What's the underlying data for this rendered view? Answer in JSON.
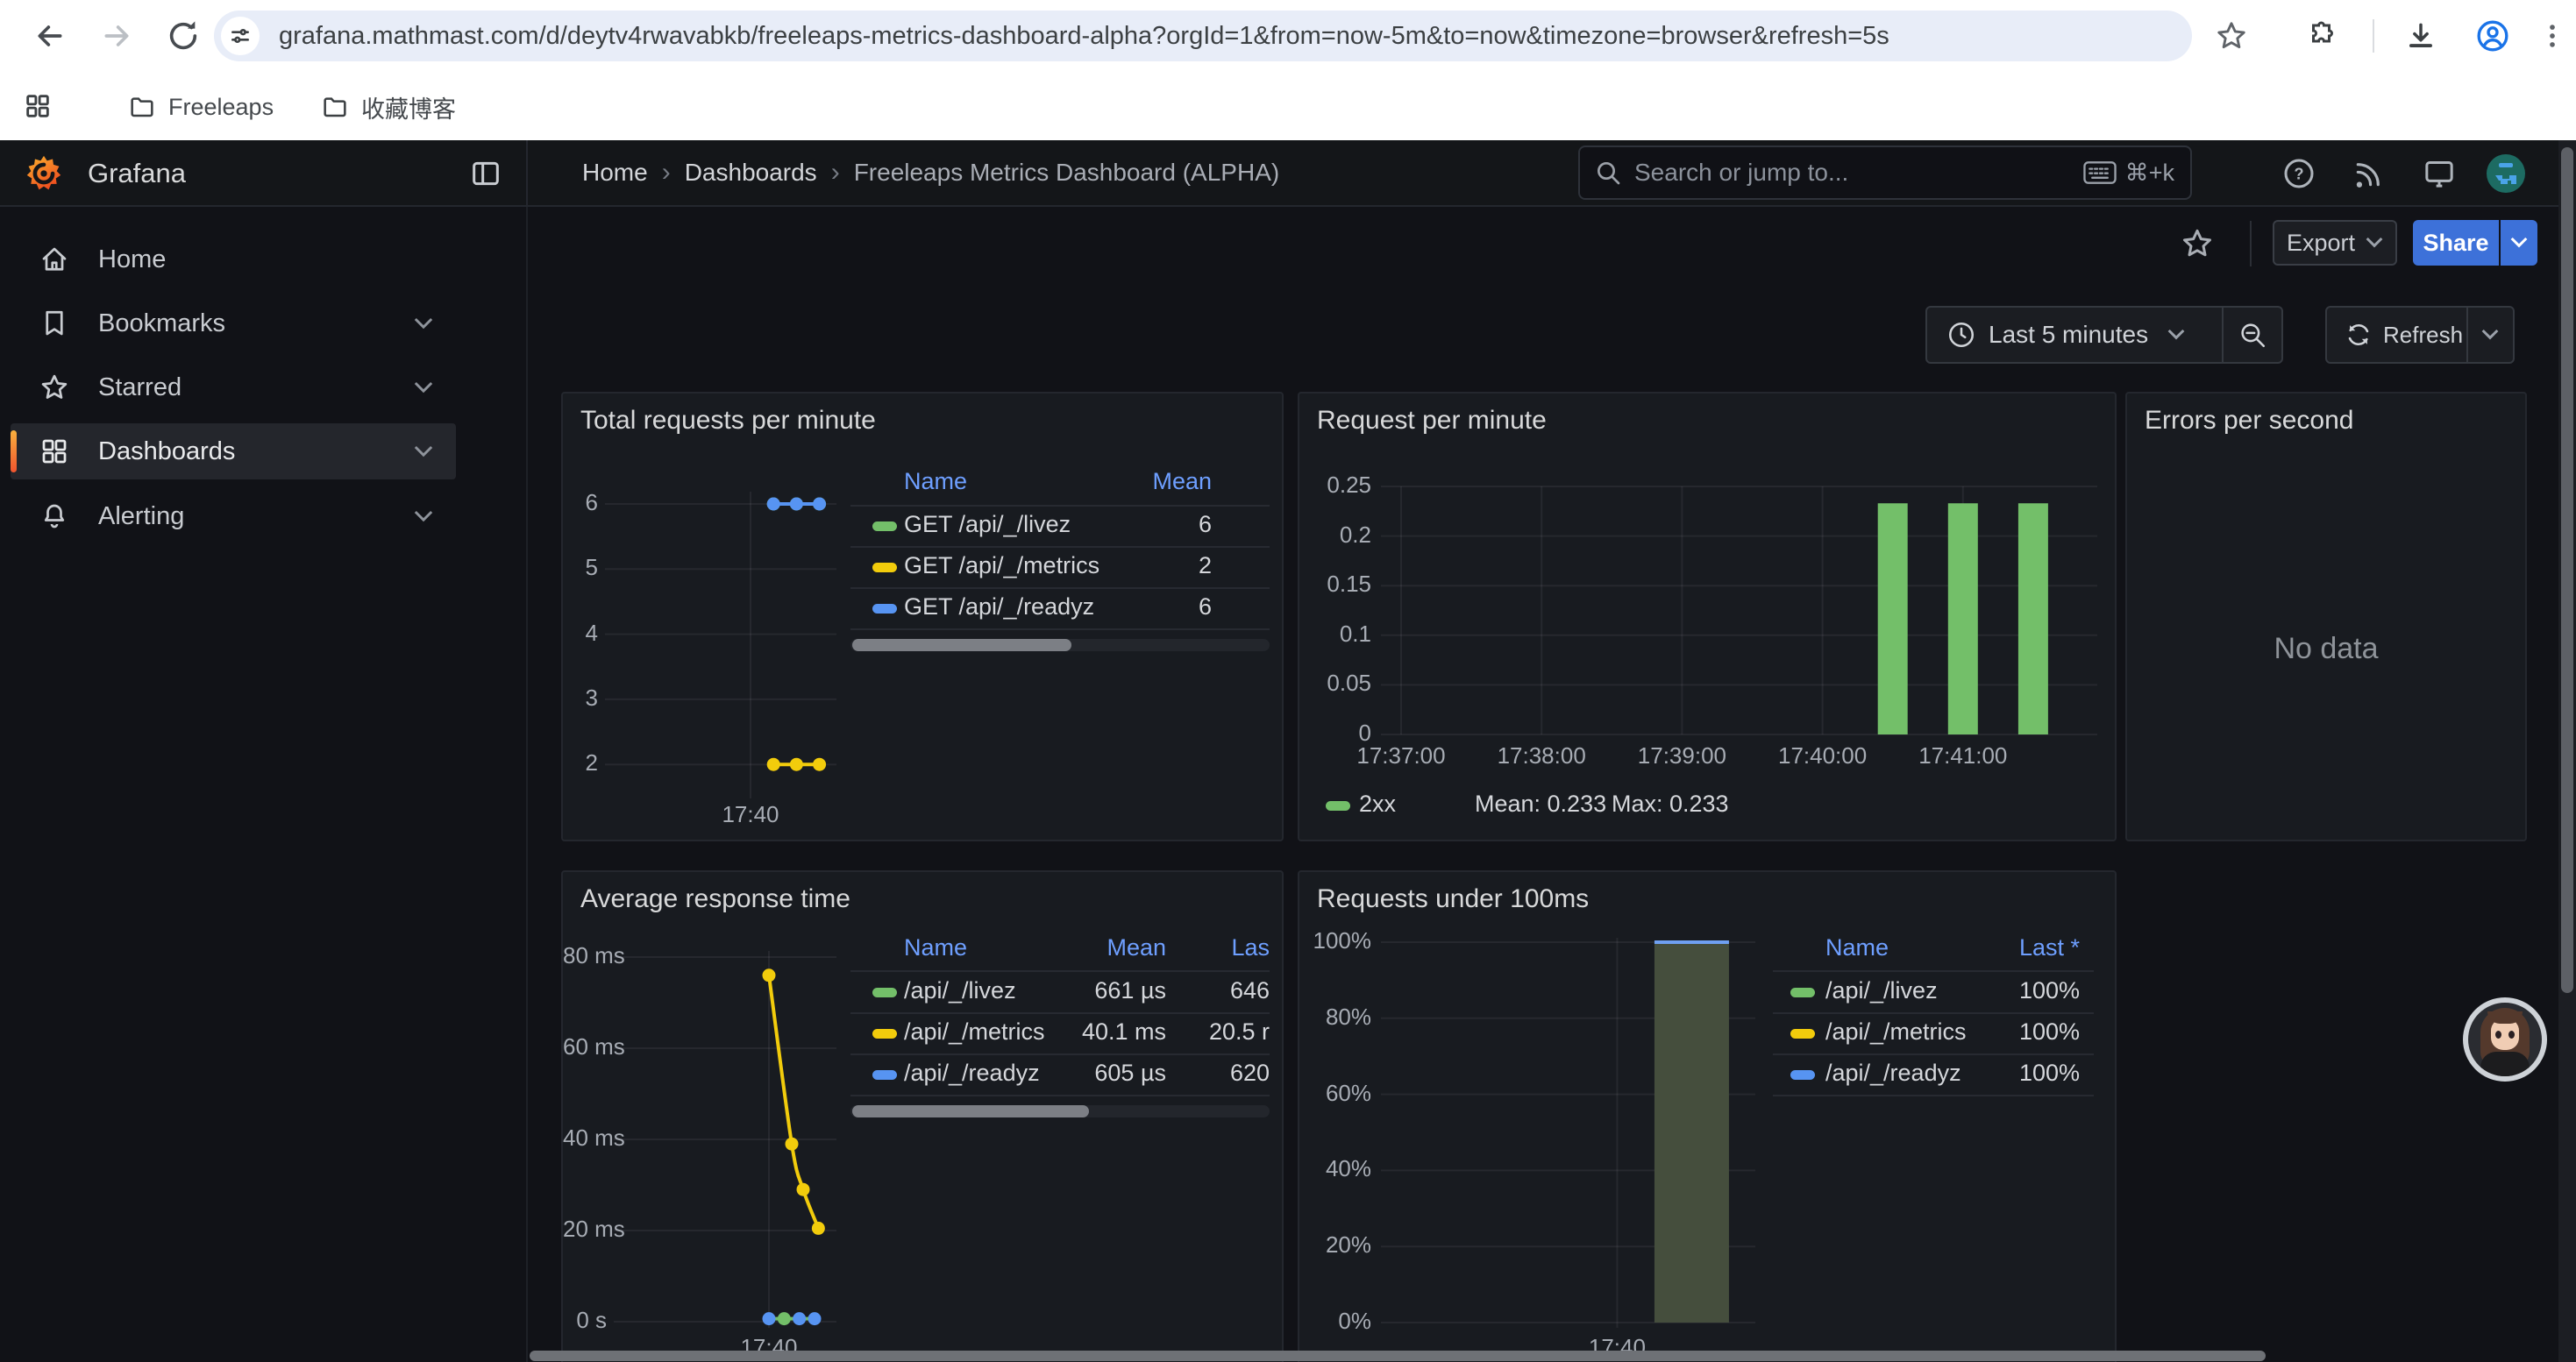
{
  "browser": {
    "url": "grafana.mathmast.com/d/deytv4rwavabkb/freeleaps-metrics-dashboard-alpha?orgId=1&from=now-5m&to=now&timezone=browser&refresh=5s",
    "bookmarks": [
      "Freeleaps",
      "收藏博客"
    ]
  },
  "grafana": {
    "brand": "Grafana",
    "breadcrumbs": [
      "Home",
      "Dashboards",
      "Freeleaps Metrics Dashboard (ALPHA)"
    ],
    "search": {
      "placeholder": "Search or jump to...",
      "shortcut": "⌘+k"
    },
    "toolbar": {
      "export_label": "Export",
      "share_label": "Share"
    },
    "timebar": {
      "range_label": "Last 5 minutes",
      "refresh_label": "Refresh"
    },
    "sidebar": [
      {
        "label": "Home",
        "icon": "home",
        "active": false,
        "chevron": false
      },
      {
        "label": "Bookmarks",
        "icon": "bookmark",
        "active": false,
        "chevron": true
      },
      {
        "label": "Starred",
        "icon": "star",
        "active": false,
        "chevron": true
      },
      {
        "label": "Dashboards",
        "icon": "grid",
        "active": true,
        "chevron": true
      },
      {
        "label": "Alerting",
        "icon": "bell",
        "active": false,
        "chevron": true
      }
    ]
  },
  "colors": {
    "green": "#73BF69",
    "yellow": "#F2CC0C",
    "blue": "#5794F2",
    "link_blue": "#6E9FFF",
    "share_blue": "#3D71D9",
    "area_olive": "#454E3D",
    "area_top_blue": "#6FA0F2"
  },
  "chart_data": [
    {
      "panel": "Total requests per minute",
      "type": "line",
      "y_ticks": [
        6,
        5,
        4,
        3,
        2
      ],
      "x_tick": {
        "label": "17:40",
        "s": 200
      },
      "points_seconds": [
        230,
        260,
        290
      ],
      "legend_columns": [
        "Name",
        "Mean"
      ],
      "series": [
        {
          "name": "GET /api/_/livez",
          "color": "green",
          "mean": 6
        },
        {
          "name": "GET /api/_/metrics",
          "color": "yellow",
          "mean": 2
        },
        {
          "name": "GET /api/_/readyz",
          "color": "blue",
          "mean": 6
        }
      ]
    },
    {
      "panel": "Request per minute",
      "type": "bar",
      "y_ticks": [
        "0.25",
        "0.2",
        "0.15",
        "0.1",
        "0.05",
        "0"
      ],
      "y_max": 0.25,
      "x_ticks": [
        {
          "label": "17:37:00",
          "s": 20
        },
        {
          "label": "17:38:00",
          "s": 80
        },
        {
          "label": "17:39:00",
          "s": 140
        },
        {
          "label": "17:40:00",
          "s": 200
        },
        {
          "label": "17:41:00",
          "s": 260
        }
      ],
      "bars": {
        "times_s": [
          230,
          260,
          290
        ],
        "value": 0.233,
        "color": "green"
      },
      "legend": {
        "name": "2xx",
        "mean": "Mean: 0.233",
        "max": "Max: 0.233"
      }
    },
    {
      "panel": "Errors per second",
      "type": "none",
      "message": "No data"
    },
    {
      "panel": "Average response time",
      "type": "line",
      "y_ticks": [
        {
          "label": "80 ms",
          "ms": 80
        },
        {
          "label": "60 ms",
          "ms": 60
        },
        {
          "label": "40 ms",
          "ms": 40
        },
        {
          "label": "20 ms",
          "ms": 20
        },
        {
          "label": "0 s",
          "ms": 0
        }
      ],
      "x_tick": {
        "label": "17:40",
        "s": 200
      },
      "yellow_curve": {
        "seconds": [
          200,
          230,
          245,
          265
        ],
        "values_ms": [
          76,
          39,
          29,
          20.5
        ]
      },
      "baseline": {
        "seconds": [
          200,
          220,
          240,
          260
        ],
        "value_ms": 0.65,
        "dot_colors": [
          "blue",
          "green",
          "blue",
          "blue"
        ]
      },
      "legend_columns": [
        "Name",
        "Mean",
        "Las"
      ],
      "series": [
        {
          "name": "/api/_/livez",
          "color": "green",
          "mean": "661 µs",
          "last": "646"
        },
        {
          "name": "/api/_/metrics",
          "color": "yellow",
          "mean": "40.1 ms",
          "last": "20.5 r"
        },
        {
          "name": "/api/_/readyz",
          "color": "blue",
          "mean": "605 µs",
          "last": "620"
        }
      ]
    },
    {
      "panel": "Requests under 100ms",
      "type": "bar",
      "y_ticks": [
        {
          "label": "100%",
          "pct": 100
        },
        {
          "label": "80%",
          "pct": 80
        },
        {
          "label": "60%",
          "pct": 60
        },
        {
          "label": "40%",
          "pct": 40
        },
        {
          "label": "20%",
          "pct": 20
        },
        {
          "label": "0%",
          "pct": 0
        }
      ],
      "x_tick": {
        "label": "17:40",
        "s": 200
      },
      "bar": {
        "start_s": 230,
        "end_s": 290,
        "value_pct": 100
      },
      "legend_columns": [
        "Name",
        "Last *"
      ],
      "rows": [
        {
          "name": "/api/_/livez",
          "color": "green",
          "last": "100%"
        },
        {
          "name": "/api/_/metrics",
          "color": "yellow",
          "last": "100%"
        },
        {
          "name": "/api/_/readyz",
          "color": "blue",
          "last": "100%"
        }
      ]
    }
  ]
}
